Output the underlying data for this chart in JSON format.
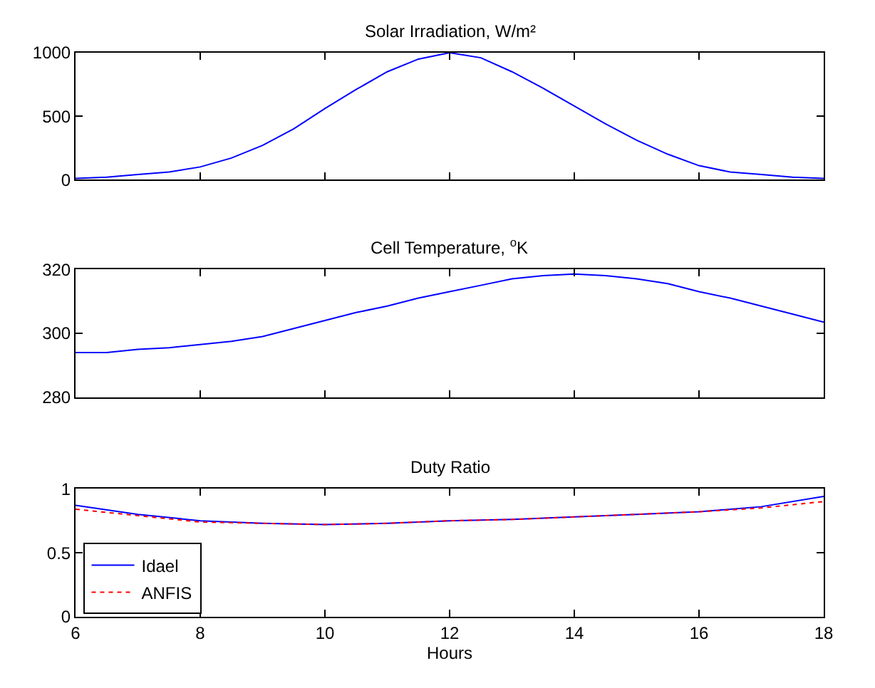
{
  "chart_data": [
    {
      "type": "line",
      "title": "Solar Irradiation, W/m²",
      "x": [
        6,
        6.5,
        7,
        7.5,
        8,
        8.5,
        9,
        9.5,
        10,
        10.5,
        11,
        11.5,
        12,
        12.5,
        13,
        13.5,
        14,
        14.5,
        15,
        15.5,
        16,
        16.5,
        17,
        17.5,
        18
      ],
      "series": [
        {
          "color": "#0000ff",
          "values": [
            10,
            20,
            40,
            60,
            100,
            170,
            270,
            400,
            560,
            710,
            850,
            950,
            1000,
            960,
            850,
            720,
            580,
            440,
            310,
            200,
            110,
            60,
            40,
            20,
            10
          ]
        }
      ],
      "xlim": [
        6,
        18
      ],
      "xticks": [
        {
          "value": 6,
          "label": null
        },
        {
          "value": 8,
          "label": null
        },
        {
          "value": 10,
          "label": null
        },
        {
          "value": 12,
          "label": null
        },
        {
          "value": 14,
          "label": null
        },
        {
          "value": 16,
          "label": null
        },
        {
          "value": 18,
          "label": null
        }
      ],
      "ylim": [
        0,
        1000
      ],
      "yticks": [
        0,
        500,
        1000
      ],
      "tick_labels": "y",
      "legend": false
    },
    {
      "type": "line",
      "title": "Cell Temperature, $^{o}$K",
      "x": [
        6,
        6.5,
        7,
        7.5,
        8,
        8.5,
        9,
        9.5,
        10,
        10.5,
        11,
        11.5,
        12,
        12.5,
        13,
        13.5,
        14,
        14.5,
        15,
        15.5,
        16,
        16.5,
        17,
        17.5,
        18
      ],
      "series": [
        {
          "color": "#0000ff",
          "values": [
            294,
            294,
            295,
            295.5,
            296.5,
            297.5,
            299,
            301.5,
            304,
            306.5,
            308.5,
            311,
            313,
            315,
            317,
            318,
            318.5,
            318,
            317,
            315.5,
            313,
            311,
            308.5,
            306,
            303.5
          ]
        }
      ],
      "xlim": [
        6,
        18
      ],
      "xticks": [
        {
          "value": 6,
          "label": null
        },
        {
          "value": 8,
          "label": null
        },
        {
          "value": 10,
          "label": null
        },
        {
          "value": 12,
          "label": null
        },
        {
          "value": 14,
          "label": null
        },
        {
          "value": 16,
          "label": null
        },
        {
          "value": 18,
          "label": null
        }
      ],
      "ylim": [
        280,
        320
      ],
      "yticks": [
        280,
        300,
        320
      ],
      "tick_labels": "y",
      "legend": false
    },
    {
      "type": "line",
      "title": "Duty Ratio",
      "xlabel": "Hours",
      "x": [
        6,
        7,
        8,
        9,
        10,
        11,
        12,
        13,
        14,
        15,
        16,
        17,
        18
      ],
      "series": [
        {
          "name": "Idael",
          "color": "#0000ff",
          "line_style": "solid",
          "values": [
            0.87,
            0.8,
            0.75,
            0.73,
            0.72,
            0.73,
            0.75,
            0.76,
            0.78,
            0.8,
            0.82,
            0.86,
            0.94
          ]
        },
        {
          "name": "ANFIS",
          "color": "#ff0000",
          "line_style": "dotted",
          "values": [
            0.84,
            0.79,
            0.74,
            0.73,
            0.72,
            0.73,
            0.75,
            0.76,
            0.78,
            0.8,
            0.82,
            0.85,
            0.9
          ]
        }
      ],
      "xlim": [
        6,
        18
      ],
      "xticks": [
        6,
        8,
        10,
        12,
        14,
        16,
        18
      ],
      "ylim": [
        0,
        1
      ],
      "yticks": [
        0,
        0.5,
        1
      ],
      "legend": "bottom left"
    }
  ]
}
